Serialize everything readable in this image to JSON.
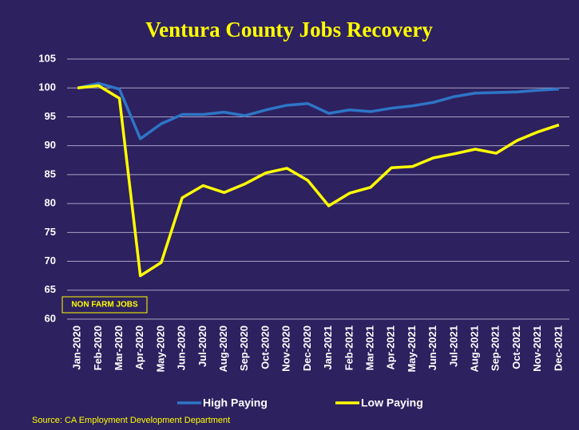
{
  "chart_data": {
    "type": "line",
    "title": "Ventura County Jobs Recovery",
    "annotation": "NON FARM JOBS",
    "source": "Source: CA Employment Development Department",
    "categories": [
      "Jan-2020",
      "Feb-2020",
      "Mar-2020",
      "Apr-2020",
      "May-2020",
      "Jun-2020",
      "Jul-2020",
      "Aug-2020",
      "Sep-2020",
      "Oct-2020",
      "Nov-2020",
      "Dec-2020",
      "Jan-2021",
      "Feb-2021",
      "Mar-2021",
      "Apr-2021",
      "May-2021",
      "Jun-2021",
      "Jul-2021",
      "Aug-2021",
      "Sep-2021",
      "Oct-2021",
      "Nov-2021",
      "Dec-2021"
    ],
    "series": [
      {
        "name": "High Paying",
        "color": "#2e75c6",
        "values": [
          100,
          100.8,
          99.8,
          91.2,
          93.8,
          95.4,
          95.4,
          95.8,
          95.2,
          96.2,
          97,
          97.3,
          95.6,
          96.2,
          95.9,
          96.5,
          96.9,
          97.5,
          98.5,
          99.1,
          99.2,
          99.3,
          99.6,
          99.8
        ]
      },
      {
        "name": "Low Paying",
        "color": "#ffff00",
        "values": [
          100,
          100.4,
          98.2,
          67.5,
          69.8,
          81,
          83.1,
          81.9,
          83.4,
          85.3,
          86.1,
          84,
          79.6,
          81.8,
          82.8,
          86.2,
          86.4,
          87.9,
          88.6,
          89.4,
          88.7,
          90.9,
          92.4,
          93.6
        ]
      }
    ],
    "ylim": [
      60,
      105
    ],
    "yticks": [
      60,
      65,
      70,
      75,
      80,
      85,
      90,
      95,
      100,
      105
    ],
    "grid": true
  }
}
